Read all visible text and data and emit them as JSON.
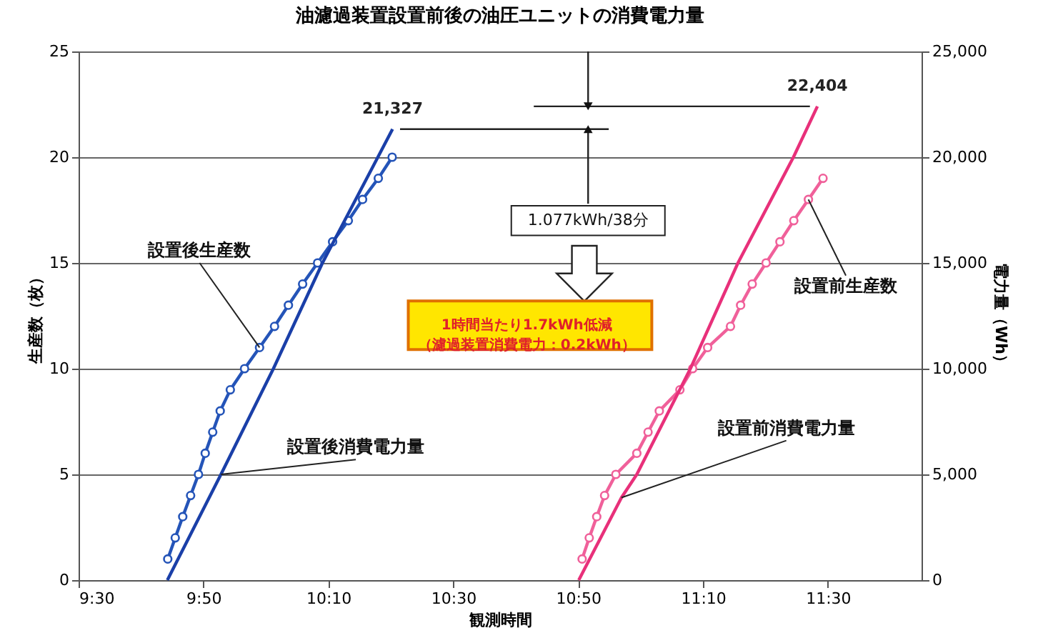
{
  "chart_data": {
    "type": "line",
    "title": "油濾過装置設置前後の油圧ユニットの消費電力量",
    "xlabel": "観測時間",
    "ylabel": "生産数（枚）",
    "y2label": "電力量（Wh）",
    "xlim": [
      9.5,
      11.75
    ],
    "xticks": [
      {
        "value": 9.5,
        "label": "9:30"
      },
      {
        "value": 9.8333,
        "label": "9:50"
      },
      {
        "value": 10.1667,
        "label": "10:10"
      },
      {
        "value": 10.5,
        "label": "10:30"
      },
      {
        "value": 10.8333,
        "label": "10:50"
      },
      {
        "value": 11.1667,
        "label": "11:10"
      },
      {
        "value": 11.5,
        "label": "11:30"
      }
    ],
    "ylim": [
      0,
      25
    ],
    "yticks": [
      0,
      5,
      10,
      15,
      20,
      25
    ],
    "y2lim": [
      0,
      25000
    ],
    "y2ticks": [
      {
        "value": 0,
        "label": "0"
      },
      {
        "value": 5000,
        "label": "5,000"
      },
      {
        "value": 10000,
        "label": "10,000"
      },
      {
        "value": 15000,
        "label": "15,000"
      },
      {
        "value": 20000,
        "label": "20,000"
      },
      {
        "value": 25000,
        "label": "25,000"
      }
    ],
    "grid": "y",
    "legend": false,
    "annotations": [
      "1.077kWh/38分",
      "1時間当たり1.7kWh低減",
      "（濾過装置消費電力：0.2kWh）"
    ],
    "series": [
      {
        "name": "設置後生産数",
        "color": "#2454b8",
        "marker": "circle",
        "x": [
          9.738,
          9.758,
          9.778,
          9.799,
          9.82,
          9.838,
          9.858,
          9.878,
          9.905,
          9.943,
          9.983,
          10.023,
          10.06,
          10.098,
          10.138,
          10.178,
          10.22,
          10.258,
          10.3,
          10.337
        ],
        "values": [
          1,
          2,
          3,
          4,
          5,
          6,
          7,
          8,
          9,
          10,
          11,
          12,
          13,
          14,
          15,
          16,
          17,
          18,
          19,
          20
        ]
      },
      {
        "name": "設置後消費電力量",
        "color": "#1a3fa8",
        "marker": "none",
        "axis": "y2",
        "x": [
          9.737,
          9.88,
          10.02,
          10.151,
          10.338
        ],
        "values": [
          0,
          5000,
          10000,
          15000,
          21327
        ],
        "value_labels": [
          null,
          null,
          null,
          null,
          "21,327"
        ]
      },
      {
        "name": "設置前生産数",
        "color": "#f0609a",
        "marker": "circle",
        "x": [
          10.844,
          10.863,
          10.883,
          10.904,
          10.934,
          10.99,
          11.02,
          11.05,
          11.105,
          11.139,
          11.179,
          11.24,
          11.267,
          11.298,
          11.335,
          11.372,
          11.409,
          11.448,
          11.487
        ],
        "values": [
          1,
          2,
          3,
          4,
          5,
          6,
          7,
          8,
          9,
          10,
          11,
          12,
          13,
          14,
          15,
          16,
          17,
          18,
          19
        ]
      },
      {
        "name": "設置前消費電力量",
        "color": "#e8307a",
        "marker": "none",
        "axis": "y2",
        "x": [
          10.835,
          10.949,
          10.99,
          11.133,
          11.26,
          11.408,
          11.472
        ],
        "values": [
          0,
          3900,
          5000,
          10000,
          15000,
          20000,
          22404
        ],
        "value_labels": [
          null,
          null,
          null,
          null,
          null,
          null,
          "22,404"
        ]
      }
    ]
  }
}
